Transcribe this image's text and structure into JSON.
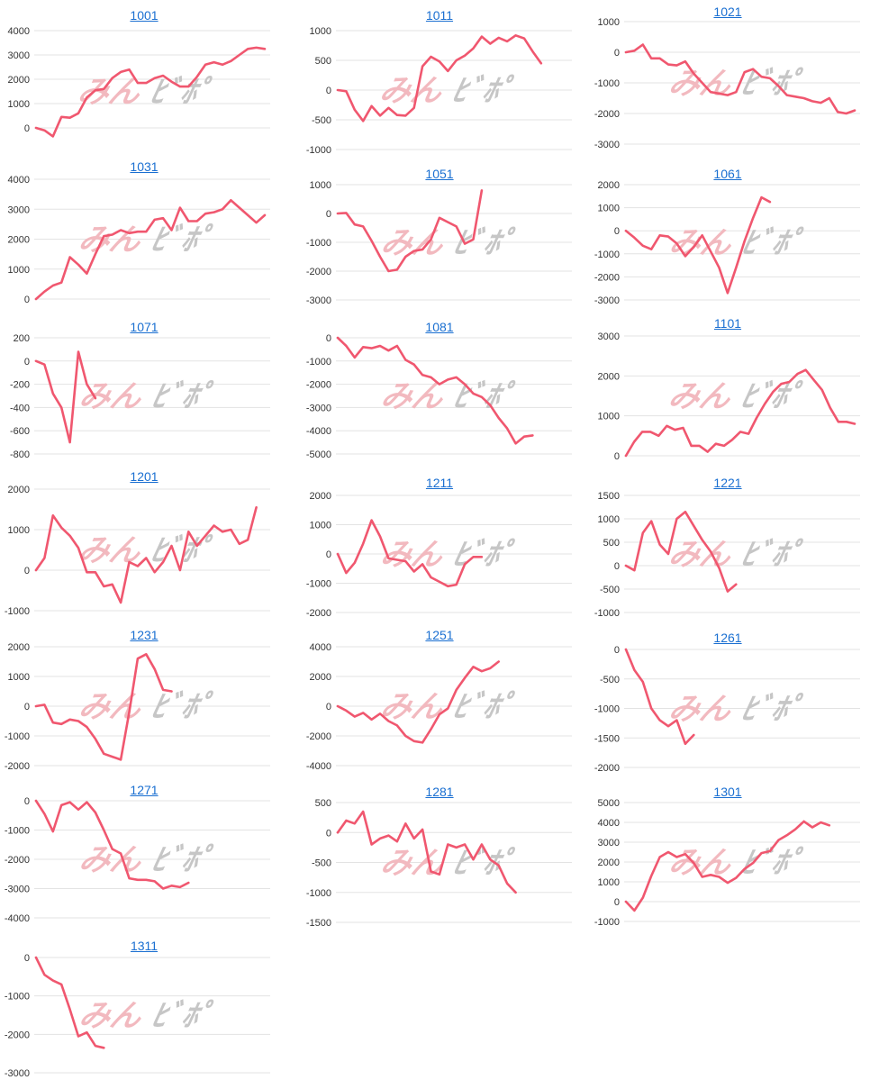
{
  "watermark": {
    "part_a": "みん",
    "part_b": "ﾋﾞﾎﾟ"
  },
  "colors": {
    "line": "#f0576f",
    "grid": "#e3e3e3",
    "title": "#1a6fd1",
    "watermark_a": "#f2b9bf",
    "watermark_b": "#c6c6c6"
  },
  "chart_data": [
    {
      "type": "line",
      "title": "1001",
      "ylim": [
        -1000,
        4000
      ],
      "yticks": [
        0,
        1000,
        2000,
        3000,
        4000
      ],
      "tick_labels": [
        "0",
        "1000",
        "2000",
        "3000",
        "4000"
      ],
      "values": [
        0,
        -100,
        -350,
        450,
        420,
        600,
        1250,
        1550,
        1600,
        2050,
        2300,
        2400,
        1850,
        1850,
        2050,
        2150,
        1900,
        1700,
        1700,
        2100,
        2600,
        2700,
        2600,
        2750,
        3000,
        3250,
        3300,
        3250
      ]
    },
    {
      "type": "line",
      "title": "1011",
      "ylim": [
        -1000,
        1000
      ],
      "yticks": [
        -1000,
        -500,
        0,
        500,
        1000
      ],
      "tick_labels": [
        "-1000",
        "-500",
        "0",
        "500",
        "1000"
      ],
      "values": [
        0,
        -20,
        -330,
        -520,
        -270,
        -430,
        -300,
        -420,
        -430,
        -300,
        400,
        560,
        480,
        320,
        500,
        580,
        700,
        900,
        780,
        880,
        820,
        920,
        870,
        650,
        450
      ]
    },
    {
      "type": "line",
      "title": "1021",
      "ylim": [
        -3000,
        1000
      ],
      "yticks": [
        -3000,
        -2000,
        -1000,
        0,
        1000
      ],
      "tick_labels": [
        "-3000",
        "-2000",
        "-1000",
        "0",
        "1000"
      ],
      "values": [
        0,
        50,
        250,
        -200,
        -200,
        -400,
        -430,
        -300,
        -700,
        -1000,
        -1300,
        -1350,
        -1400,
        -1300,
        -650,
        -550,
        -800,
        -850,
        -1100,
        -1400,
        -1450,
        -1500,
        -1600,
        -1650,
        -1500,
        -1950,
        -2000,
        -1900
      ]
    },
    {
      "type": "line",
      "title": "1031",
      "ylim": [
        0,
        4000
      ],
      "yticks": [
        0,
        1000,
        2000,
        3000,
        4000
      ],
      "tick_labels": [
        "0",
        "1000",
        "2000",
        "3000",
        "4000"
      ],
      "values": [
        0,
        250,
        450,
        550,
        1400,
        1150,
        850,
        1500,
        2100,
        2150,
        2300,
        2200,
        2250,
        2250,
        2650,
        2700,
        2300,
        3050,
        2600,
        2600,
        2850,
        2900,
        3000,
        3300,
        3050,
        2800,
        2550,
        2800
      ]
    },
    {
      "type": "line",
      "title": "1051",
      "ylim": [
        -3000,
        1000
      ],
      "yticks": [
        -3000,
        -2000,
        -1000,
        0,
        1000
      ],
      "tick_labels": [
        "-3000",
        "-2000",
        "-1000",
        "0",
        "1000"
      ],
      "values": [
        0,
        20,
        -380,
        -450,
        -950,
        -1500,
        -2000,
        -1950,
        -1500,
        -1300,
        -1250,
        -900,
        -150,
        -300,
        -450,
        -1050,
        -900,
        800
      ]
    },
    {
      "type": "line",
      "title": "1061",
      "ylim": [
        -3000,
        2000
      ],
      "yticks": [
        -3000,
        -2000,
        -1000,
        0,
        1000,
        2000
      ],
      "tick_labels": [
        "-3000",
        "-2000",
        "-1000",
        "0",
        "1000",
        "2000"
      ],
      "values": [
        0,
        -300,
        -650,
        -800,
        -200,
        -250,
        -550,
        -1100,
        -700,
        -200,
        -900,
        -1600,
        -2700,
        -1600,
        -450,
        550,
        1450,
        1250
      ]
    },
    {
      "type": "line",
      "title": "1071",
      "ylim": [
        -800,
        200
      ],
      "yticks": [
        -800,
        -600,
        -400,
        -200,
        0,
        200
      ],
      "tick_labels": [
        "-800",
        "-600",
        "-400",
        "-200",
        "0",
        "200"
      ],
      "values": [
        0,
        -30,
        -280,
        -400,
        -700,
        80,
        -200,
        -320
      ]
    },
    {
      "type": "line",
      "title": "1081",
      "ylim": [
        -5000,
        0
      ],
      "yticks": [
        -5000,
        -4000,
        -3000,
        -2000,
        -1000,
        0
      ],
      "tick_labels": [
        "-5000",
        "-4000",
        "-3000",
        "-2000",
        "-1000",
        "0"
      ],
      "values": [
        0,
        -350,
        -850,
        -400,
        -450,
        -350,
        -550,
        -350,
        -950,
        -1150,
        -1600,
        -1700,
        -2000,
        -1800,
        -1700,
        -2000,
        -2400,
        -2550,
        -2900,
        -3450,
        -3900,
        -4550,
        -4250,
        -4200
      ]
    },
    {
      "type": "line",
      "title": "1101",
      "ylim": [
        0,
        3000
      ],
      "yticks": [
        0,
        1000,
        2000,
        3000
      ],
      "tick_labels": [
        "0",
        "1000",
        "2000",
        "3000"
      ],
      "values": [
        0,
        350,
        600,
        600,
        500,
        750,
        650,
        700,
        250,
        250,
        100,
        300,
        250,
        400,
        600,
        550,
        950,
        1300,
        1600,
        1800,
        1850,
        2050,
        2150,
        1900,
        1650,
        1200,
        850,
        850,
        800
      ]
    },
    {
      "type": "line",
      "title": "1201",
      "ylim": [
        -1000,
        2000
      ],
      "yticks": [
        -1000,
        0,
        1000,
        2000
      ],
      "tick_labels": [
        "-1000",
        "0",
        "1000",
        "2000"
      ],
      "values": [
        0,
        300,
        1350,
        1050,
        850,
        550,
        -50,
        -50,
        -400,
        -350,
        -800,
        200,
        100,
        300,
        -50,
        200,
        600,
        0,
        950,
        600,
        850,
        1100,
        950,
        1000,
        650,
        750,
        1550
      ]
    },
    {
      "type": "line",
      "title": "1211",
      "ylim": [
        -2000,
        2000
      ],
      "yticks": [
        -2000,
        -1000,
        0,
        1000,
        2000
      ],
      "tick_labels": [
        "-2000",
        "-1000",
        "0",
        "1000",
        "2000"
      ],
      "values": [
        0,
        -650,
        -300,
        350,
        1150,
        600,
        -150,
        -200,
        -250,
        -600,
        -350,
        -800,
        -950,
        -1100,
        -1050,
        -350,
        -100,
        -100
      ]
    },
    {
      "type": "line",
      "title": "1221",
      "ylim": [
        -1000,
        1500
      ],
      "yticks": [
        -1000,
        -500,
        0,
        500,
        1000,
        1500
      ],
      "tick_labels": [
        "-1000",
        "-500",
        "0",
        "500",
        "1000",
        "1500"
      ],
      "values": [
        0,
        -100,
        700,
        950,
        450,
        250,
        1000,
        1150,
        850,
        550,
        300,
        -50,
        -550,
        -400
      ]
    },
    {
      "type": "line",
      "title": "1231",
      "ylim": [
        -2000,
        2000
      ],
      "yticks": [
        -2000,
        -1000,
        0,
        1000,
        2000
      ],
      "tick_labels": [
        "-2000",
        "-1000",
        "0",
        "1000",
        "2000"
      ],
      "values": [
        0,
        50,
        -550,
        -600,
        -450,
        -500,
        -700,
        -1100,
        -1600,
        -1700,
        -1800,
        -200,
        1600,
        1750,
        1250,
        550,
        500
      ]
    },
    {
      "type": "line",
      "title": "1251",
      "ylim": [
        -4000,
        4000
      ],
      "yticks": [
        -4000,
        -2000,
        0,
        2000,
        4000
      ],
      "tick_labels": [
        "-4000",
        "-2000",
        "0",
        "2000",
        "4000"
      ],
      "values": [
        0,
        -300,
        -700,
        -450,
        -900,
        -500,
        -1000,
        -1300,
        -2000,
        -2350,
        -2450,
        -1550,
        -550,
        -150,
        1100,
        1900,
        2650,
        2350,
        2550,
        3000
      ]
    },
    {
      "type": "line",
      "title": "1261",
      "ylim": [
        -2000,
        0
      ],
      "yticks": [
        -2000,
        -1500,
        -1000,
        -500,
        0
      ],
      "tick_labels": [
        "-2000",
        "-1500",
        "-1000",
        "-500",
        "0"
      ],
      "values": [
        0,
        -350,
        -550,
        -1000,
        -1200,
        -1300,
        -1200,
        -1600,
        -1450
      ]
    },
    {
      "type": "line",
      "title": "1271",
      "ylim": [
        -4000,
        0
      ],
      "yticks": [
        -4000,
        -3000,
        -2000,
        -1000,
        0
      ],
      "tick_labels": [
        "-4000",
        "-3000",
        "-2000",
        "-1000",
        "0"
      ],
      "values": [
        0,
        -450,
        -1050,
        -150,
        -50,
        -300,
        -50,
        -400,
        -1000,
        -1650,
        -1800,
        -2650,
        -2700,
        -2700,
        -2750,
        -3000,
        -2900,
        -2950,
        -2800
      ]
    },
    {
      "type": "line",
      "title": "1281",
      "ylim": [
        -1500,
        500
      ],
      "yticks": [
        -1500,
        -1000,
        -500,
        0,
        500
      ],
      "tick_labels": [
        "-1500",
        "-1000",
        "-500",
        "0",
        "500"
      ],
      "values": [
        0,
        200,
        150,
        350,
        -200,
        -100,
        -50,
        -150,
        150,
        -100,
        50,
        -650,
        -700,
        -200,
        -250,
        -200,
        -450,
        -200,
        -450,
        -550,
        -850,
        -1000
      ]
    },
    {
      "type": "line",
      "title": "1301",
      "ylim": [
        -1000,
        5000
      ],
      "yticks": [
        -1000,
        0,
        1000,
        2000,
        3000,
        4000,
        5000
      ],
      "tick_labels": [
        "-1000",
        "0",
        "1000",
        "2000",
        "3000",
        "4000",
        "5000"
      ],
      "values": [
        0,
        -450,
        200,
        1300,
        2250,
        2500,
        2250,
        2400,
        1950,
        1250,
        1350,
        1250,
        950,
        1200,
        1650,
        1950,
        2450,
        2550,
        3100,
        3350,
        3650,
        4050,
        3750,
        4000,
        3850
      ]
    },
    {
      "type": "line",
      "title": "1311",
      "ylim": [
        -3000,
        0
      ],
      "yticks": [
        -3000,
        -2000,
        -1000,
        0
      ],
      "tick_labels": [
        "-3000",
        "-2000",
        "-1000",
        "0"
      ],
      "values": [
        0,
        -450,
        -600,
        -700,
        -1350,
        -2050,
        -1950,
        -2300,
        -2350
      ]
    }
  ]
}
